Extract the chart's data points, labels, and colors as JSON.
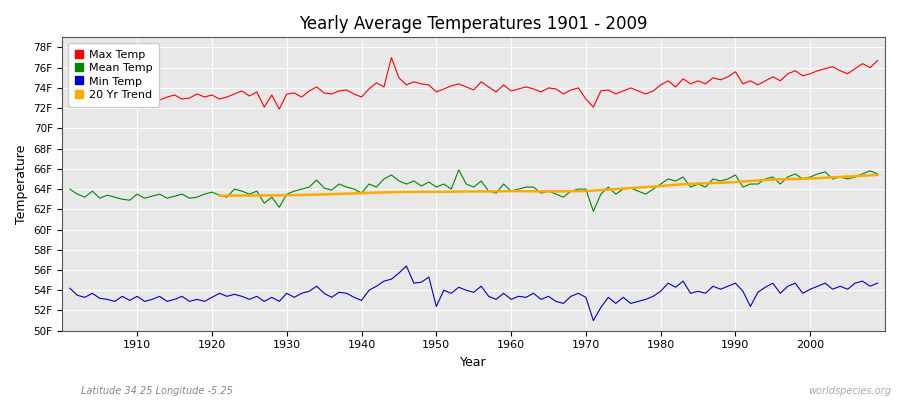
{
  "title": "Yearly Average Temperatures 1901 - 2009",
  "xlabel": "Year",
  "ylabel": "Temperature",
  "subtitle": "Latitude 34.25 Longitude -5.25",
  "watermark": "worldspecies.org",
  "years": [
    1901,
    1902,
    1903,
    1904,
    1905,
    1906,
    1907,
    1908,
    1909,
    1910,
    1911,
    1912,
    1913,
    1914,
    1915,
    1916,
    1917,
    1918,
    1919,
    1920,
    1921,
    1922,
    1923,
    1924,
    1925,
    1926,
    1927,
    1928,
    1929,
    1930,
    1931,
    1932,
    1933,
    1934,
    1935,
    1936,
    1937,
    1938,
    1939,
    1940,
    1941,
    1942,
    1943,
    1944,
    1945,
    1946,
    1947,
    1948,
    1949,
    1950,
    1951,
    1952,
    1953,
    1954,
    1955,
    1956,
    1957,
    1958,
    1959,
    1960,
    1961,
    1962,
    1963,
    1964,
    1965,
    1966,
    1967,
    1968,
    1969,
    1970,
    1971,
    1972,
    1973,
    1974,
    1975,
    1976,
    1977,
    1978,
    1979,
    1980,
    1981,
    1982,
    1983,
    1984,
    1985,
    1986,
    1987,
    1988,
    1989,
    1990,
    1991,
    1992,
    1993,
    1994,
    1995,
    1996,
    1997,
    1998,
    1999,
    2000,
    2001,
    2002,
    2003,
    2004,
    2005,
    2006,
    2007,
    2008,
    2009
  ],
  "max_temp": [
    74.2,
    73.1,
    73.0,
    73.2,
    73.4,
    73.0,
    72.8,
    72.9,
    72.7,
    73.2,
    73.0,
    73.3,
    72.8,
    73.1,
    73.3,
    72.9,
    73.0,
    73.4,
    73.1,
    73.3,
    72.9,
    73.1,
    73.4,
    73.7,
    73.2,
    73.6,
    72.1,
    73.3,
    71.9,
    73.4,
    73.5,
    73.1,
    73.7,
    74.1,
    73.5,
    73.4,
    73.7,
    73.8,
    73.4,
    73.1,
    73.9,
    74.5,
    74.1,
    77.0,
    75.0,
    74.3,
    74.6,
    74.4,
    74.3,
    73.6,
    73.9,
    74.2,
    74.4,
    74.1,
    73.8,
    74.6,
    74.1,
    73.6,
    74.3,
    73.7,
    73.9,
    74.1,
    73.9,
    73.6,
    74.0,
    73.9,
    73.4,
    73.8,
    74.0,
    72.9,
    72.1,
    73.7,
    73.8,
    73.4,
    73.7,
    74.0,
    73.7,
    73.4,
    73.7,
    74.3,
    74.7,
    74.1,
    74.9,
    74.4,
    74.7,
    74.4,
    75.0,
    74.8,
    75.1,
    75.6,
    74.4,
    74.7,
    74.3,
    74.7,
    75.1,
    74.7,
    75.4,
    75.7,
    75.2,
    75.4,
    75.7,
    75.9,
    76.1,
    75.7,
    75.4,
    75.9,
    76.4,
    76.0,
    76.7
  ],
  "mean_temp": [
    64.0,
    63.5,
    63.2,
    63.8,
    63.1,
    63.4,
    63.2,
    63.0,
    62.9,
    63.5,
    63.1,
    63.3,
    63.5,
    63.1,
    63.3,
    63.5,
    63.1,
    63.2,
    63.5,
    63.7,
    63.4,
    63.2,
    64.0,
    63.8,
    63.5,
    63.8,
    62.6,
    63.2,
    62.2,
    63.5,
    63.8,
    64.0,
    64.2,
    64.9,
    64.1,
    63.9,
    64.5,
    64.2,
    64.0,
    63.6,
    64.5,
    64.2,
    65.0,
    65.4,
    64.8,
    64.5,
    64.8,
    64.3,
    64.7,
    64.2,
    64.5,
    64.0,
    65.9,
    64.5,
    64.2,
    64.8,
    63.8,
    63.6,
    64.5,
    63.8,
    64.0,
    64.2,
    64.2,
    63.6,
    63.8,
    63.5,
    63.2,
    63.8,
    64.0,
    64.0,
    61.8,
    63.5,
    64.2,
    63.5,
    64.0,
    64.1,
    63.8,
    63.5,
    64.0,
    64.5,
    65.0,
    64.8,
    65.2,
    64.2,
    64.5,
    64.2,
    65.0,
    64.8,
    65.0,
    65.4,
    64.2,
    64.5,
    64.5,
    65.0,
    65.2,
    64.5,
    65.2,
    65.5,
    65.0,
    65.2,
    65.5,
    65.7,
    65.0,
    65.2,
    65.0,
    65.2,
    65.5,
    65.8,
    65.5
  ],
  "min_temp": [
    54.2,
    53.5,
    53.3,
    53.7,
    53.2,
    53.1,
    52.9,
    53.4,
    53.0,
    53.4,
    52.9,
    53.1,
    53.4,
    52.9,
    53.1,
    53.4,
    52.9,
    53.1,
    52.9,
    53.3,
    53.7,
    53.4,
    53.6,
    53.4,
    53.1,
    53.4,
    52.9,
    53.3,
    52.9,
    53.7,
    53.3,
    53.7,
    53.9,
    54.4,
    53.7,
    53.3,
    53.8,
    53.7,
    53.3,
    53.0,
    54.0,
    54.4,
    54.9,
    55.1,
    55.7,
    56.4,
    54.7,
    54.8,
    55.3,
    52.4,
    54.0,
    53.7,
    54.3,
    54.0,
    53.8,
    54.4,
    53.4,
    53.1,
    53.7,
    53.1,
    53.4,
    53.3,
    53.7,
    53.1,
    53.4,
    52.9,
    52.7,
    53.4,
    53.7,
    53.3,
    51.0,
    52.3,
    53.3,
    52.7,
    53.3,
    52.7,
    52.9,
    53.1,
    53.4,
    53.9,
    54.7,
    54.3,
    54.9,
    53.7,
    53.9,
    53.7,
    54.4,
    54.1,
    54.4,
    54.7,
    53.9,
    52.4,
    53.8,
    54.3,
    54.7,
    53.7,
    54.4,
    54.7,
    53.7,
    54.1,
    54.4,
    54.7,
    54.1,
    54.4,
    54.1,
    54.7,
    54.9,
    54.4,
    54.7
  ],
  "trend_years": [
    1921,
    1922,
    1923,
    1924,
    1925,
    1926,
    1927,
    1928,
    1929,
    1930,
    1931,
    1932,
    1933,
    1934,
    1935,
    1936,
    1937,
    1938,
    1939,
    1940,
    1941,
    1942,
    1943,
    1944,
    1945,
    1946,
    1947,
    1948,
    1949,
    1950,
    1951,
    1952,
    1953,
    1954,
    1955,
    1956,
    1957,
    1958,
    1959,
    1960,
    1961,
    1962,
    1963,
    1964,
    1965,
    1966,
    1967,
    1968,
    1969,
    1970,
    1971,
    1972,
    1973,
    1974,
    1975,
    1976,
    1977,
    1978,
    1979,
    1980,
    1981,
    1982,
    1983,
    1984,
    1985,
    1986,
    1987,
    1988,
    1989,
    1990,
    1991,
    1992,
    1993,
    1994,
    1995,
    1996,
    1997,
    1998,
    1999,
    2000,
    2001,
    2002,
    2003,
    2004,
    2005,
    2006,
    2007,
    2008,
    2009
  ],
  "trend_vals": [
    63.35,
    63.35,
    63.36,
    63.36,
    63.37,
    63.37,
    63.38,
    63.38,
    63.39,
    63.4,
    63.41,
    63.42,
    63.44,
    63.46,
    63.48,
    63.5,
    63.52,
    63.55,
    63.57,
    63.6,
    63.62,
    63.65,
    63.67,
    63.69,
    63.71,
    63.72,
    63.73,
    63.73,
    63.73,
    63.73,
    63.73,
    63.74,
    63.75,
    63.76,
    63.77,
    63.77,
    63.77,
    63.78,
    63.79,
    63.8,
    63.8,
    63.79,
    63.78,
    63.77,
    63.77,
    63.77,
    63.78,
    63.79,
    63.8,
    63.81,
    63.85,
    63.9,
    63.95,
    64.0,
    64.05,
    64.1,
    64.15,
    64.2,
    64.25,
    64.3,
    64.37,
    64.43,
    64.48,
    64.52,
    64.55,
    64.57,
    64.6,
    64.62,
    64.65,
    64.7,
    64.75,
    64.8,
    64.85,
    64.9,
    64.95,
    64.97,
    64.98,
    65.0,
    65.02,
    65.05,
    65.08,
    65.12,
    65.16,
    65.2,
    65.24,
    65.28,
    65.32,
    65.36,
    65.4
  ],
  "max_color": "#ff0000",
  "mean_color": "#008800",
  "min_color": "#0000cc",
  "trend_color": "#ffaa00",
  "fig_bg_color": "#ffffff",
  "plot_bg_color": "#e8e8e8",
  "grid_color": "#ffffff",
  "ylim": [
    50,
    79
  ],
  "yticks": [
    50,
    52,
    54,
    56,
    58,
    60,
    62,
    64,
    66,
    68,
    70,
    72,
    74,
    76,
    78
  ],
  "ytick_labels": [
    "50F",
    "52F",
    "54F",
    "56F",
    "58F",
    "60F",
    "62F",
    "64F",
    "66F",
    "68F",
    "70F",
    "72F",
    "74F",
    "76F",
    "78F"
  ],
  "xlim_start": 1900,
  "xlim_end": 2010,
  "xticks": [
    1910,
    1920,
    1930,
    1940,
    1950,
    1960,
    1970,
    1980,
    1990,
    2000
  ],
  "legend_entries": [
    "Max Temp",
    "Mean Temp",
    "Min Temp",
    "20 Yr Trend"
  ],
  "legend_colors": [
    "#ff0000",
    "#008800",
    "#0000cc",
    "#ffaa00"
  ]
}
